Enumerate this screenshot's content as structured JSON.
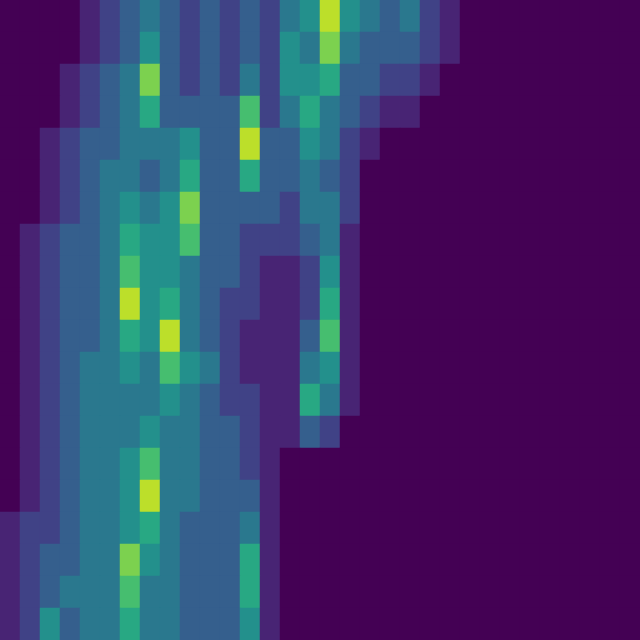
{
  "chart_data": {
    "type": "heatmap",
    "color": "viridis",
    "tick_labels": false,
    "value_range": [
      0,
      10
    ],
    "cells": [
      [
        0,
        0,
        0,
        0,
        1,
        2,
        3,
        4,
        3,
        2,
        3,
        2,
        3,
        2,
        4,
        5,
        9,
        5,
        4,
        3,
        4,
        2,
        1,
        0,
        0,
        0,
        0,
        0,
        0,
        0,
        0,
        0
      ],
      [
        0,
        0,
        0,
        0,
        1,
        2,
        3,
        5,
        3,
        2,
        3,
        2,
        3,
        2,
        5,
        4,
        8,
        4,
        3,
        3,
        3,
        2,
        1,
        0,
        0,
        0,
        0,
        0,
        0,
        0,
        0,
        0
      ],
      [
        0,
        0,
        0,
        1,
        2,
        3,
        4,
        8,
        3,
        2,
        3,
        2,
        4,
        2,
        5,
        5,
        6,
        3,
        3,
        2,
        2,
        1,
        0,
        0,
        0,
        0,
        0,
        0,
        0,
        0,
        0,
        0
      ],
      [
        0,
        0,
        0,
        1,
        2,
        3,
        4,
        6,
        3,
        3,
        3,
        3,
        7,
        2,
        4,
        6,
        4,
        3,
        2,
        1,
        1,
        0,
        0,
        0,
        0,
        0,
        0,
        0,
        0,
        0,
        0,
        0
      ],
      [
        0,
        0,
        1,
        2,
        3,
        3,
        4,
        4,
        4,
        5,
        3,
        3,
        9,
        3,
        3,
        5,
        4,
        2,
        1,
        0,
        0,
        0,
        0,
        0,
        0,
        0,
        0,
        0,
        0,
        0,
        0,
        0
      ],
      [
        0,
        0,
        1,
        2,
        3,
        4,
        4,
        3,
        4,
        6,
        3,
        3,
        6,
        3,
        3,
        4,
        3,
        2,
        0,
        0,
        0,
        0,
        0,
        0,
        0,
        0,
        0,
        0,
        0,
        0,
        0,
        0
      ],
      [
        0,
        0,
        1,
        2,
        3,
        4,
        5,
        4,
        5,
        8,
        3,
        3,
        3,
        3,
        2,
        4,
        4,
        2,
        0,
        0,
        0,
        0,
        0,
        0,
        0,
        0,
        0,
        0,
        0,
        0,
        0,
        0
      ],
      [
        0,
        1,
        2,
        3,
        3,
        4,
        6,
        5,
        5,
        7,
        3,
        3,
        2,
        2,
        2,
        3,
        4,
        1,
        0,
        0,
        0,
        0,
        0,
        0,
        0,
        0,
        0,
        0,
        0,
        0,
        0,
        0
      ],
      [
        0,
        1,
        2,
        3,
        3,
        4,
        7,
        5,
        5,
        4,
        3,
        3,
        2,
        1,
        1,
        2,
        5,
        1,
        0,
        0,
        0,
        0,
        0,
        0,
        0,
        0,
        0,
        0,
        0,
        0,
        0,
        0
      ],
      [
        0,
        1,
        2,
        3,
        3,
        4,
        9,
        5,
        6,
        4,
        3,
        2,
        2,
        1,
        1,
        2,
        6,
        1,
        0,
        0,
        0,
        0,
        0,
        0,
        0,
        0,
        0,
        0,
        0,
        0,
        0,
        0
      ],
      [
        0,
        1,
        2,
        3,
        3,
        4,
        6,
        5,
        9,
        4,
        3,
        2,
        1,
        1,
        1,
        3,
        7,
        1,
        0,
        0,
        0,
        0,
        0,
        0,
        0,
        0,
        0,
        0,
        0,
        0,
        0,
        0
      ],
      [
        0,
        1,
        2,
        3,
        4,
        4,
        5,
        4,
        7,
        5,
        4,
        2,
        1,
        1,
        1,
        4,
        5,
        1,
        0,
        0,
        0,
        0,
        0,
        0,
        0,
        0,
        0,
        0,
        0,
        0,
        0,
        0
      ],
      [
        0,
        1,
        2,
        3,
        4,
        4,
        4,
        4,
        5,
        4,
        3,
        2,
        2,
        1,
        1,
        6,
        4,
        1,
        0,
        0,
        0,
        0,
        0,
        0,
        0,
        0,
        0,
        0,
        0,
        0,
        0,
        0
      ],
      [
        0,
        1,
        2,
        3,
        4,
        4,
        4,
        5,
        4,
        4,
        3,
        3,
        2,
        1,
        1,
        3,
        2,
        0,
        0,
        0,
        0,
        0,
        0,
        0,
        0,
        0,
        0,
        0,
        0,
        0,
        0,
        0
      ],
      [
        0,
        1,
        2,
        3,
        4,
        4,
        5,
        7,
        4,
        4,
        3,
        3,
        2,
        1,
        0,
        0,
        0,
        0,
        0,
        0,
        0,
        0,
        0,
        0,
        0,
        0,
        0,
        0,
        0,
        0,
        0,
        0
      ],
      [
        0,
        1,
        2,
        3,
        4,
        4,
        5,
        9,
        4,
        4,
        3,
        3,
        3,
        1,
        0,
        0,
        0,
        0,
        0,
        0,
        0,
        0,
        0,
        0,
        0,
        0,
        0,
        0,
        0,
        0,
        0,
        0
      ],
      [
        1,
        2,
        2,
        3,
        4,
        4,
        5,
        6,
        4,
        3,
        3,
        3,
        4,
        1,
        0,
        0,
        0,
        0,
        0,
        0,
        0,
        0,
        0,
        0,
        0,
        0,
        0,
        0,
        0,
        0,
        0,
        0
      ],
      [
        1,
        2,
        3,
        3,
        4,
        4,
        8,
        5,
        4,
        3,
        3,
        3,
        6,
        1,
        0,
        0,
        0,
        0,
        0,
        0,
        0,
        0,
        0,
        0,
        0,
        0,
        0,
        0,
        0,
        0,
        0,
        0
      ],
      [
        1,
        2,
        3,
        4,
        4,
        4,
        7,
        4,
        4,
        3,
        3,
        3,
        6,
        1,
        0,
        0,
        0,
        0,
        0,
        0,
        0,
        0,
        0,
        0,
        0,
        0,
        0,
        0,
        0,
        0,
        0,
        0
      ],
      [
        1,
        2,
        5,
        3,
        4,
        4,
        6,
        4,
        4,
        3,
        3,
        3,
        5,
        1,
        0,
        0,
        0,
        0,
        0,
        0,
        0,
        0,
        0,
        0,
        0,
        0,
        0,
        0,
        0,
        0,
        0,
        0
      ]
    ]
  }
}
